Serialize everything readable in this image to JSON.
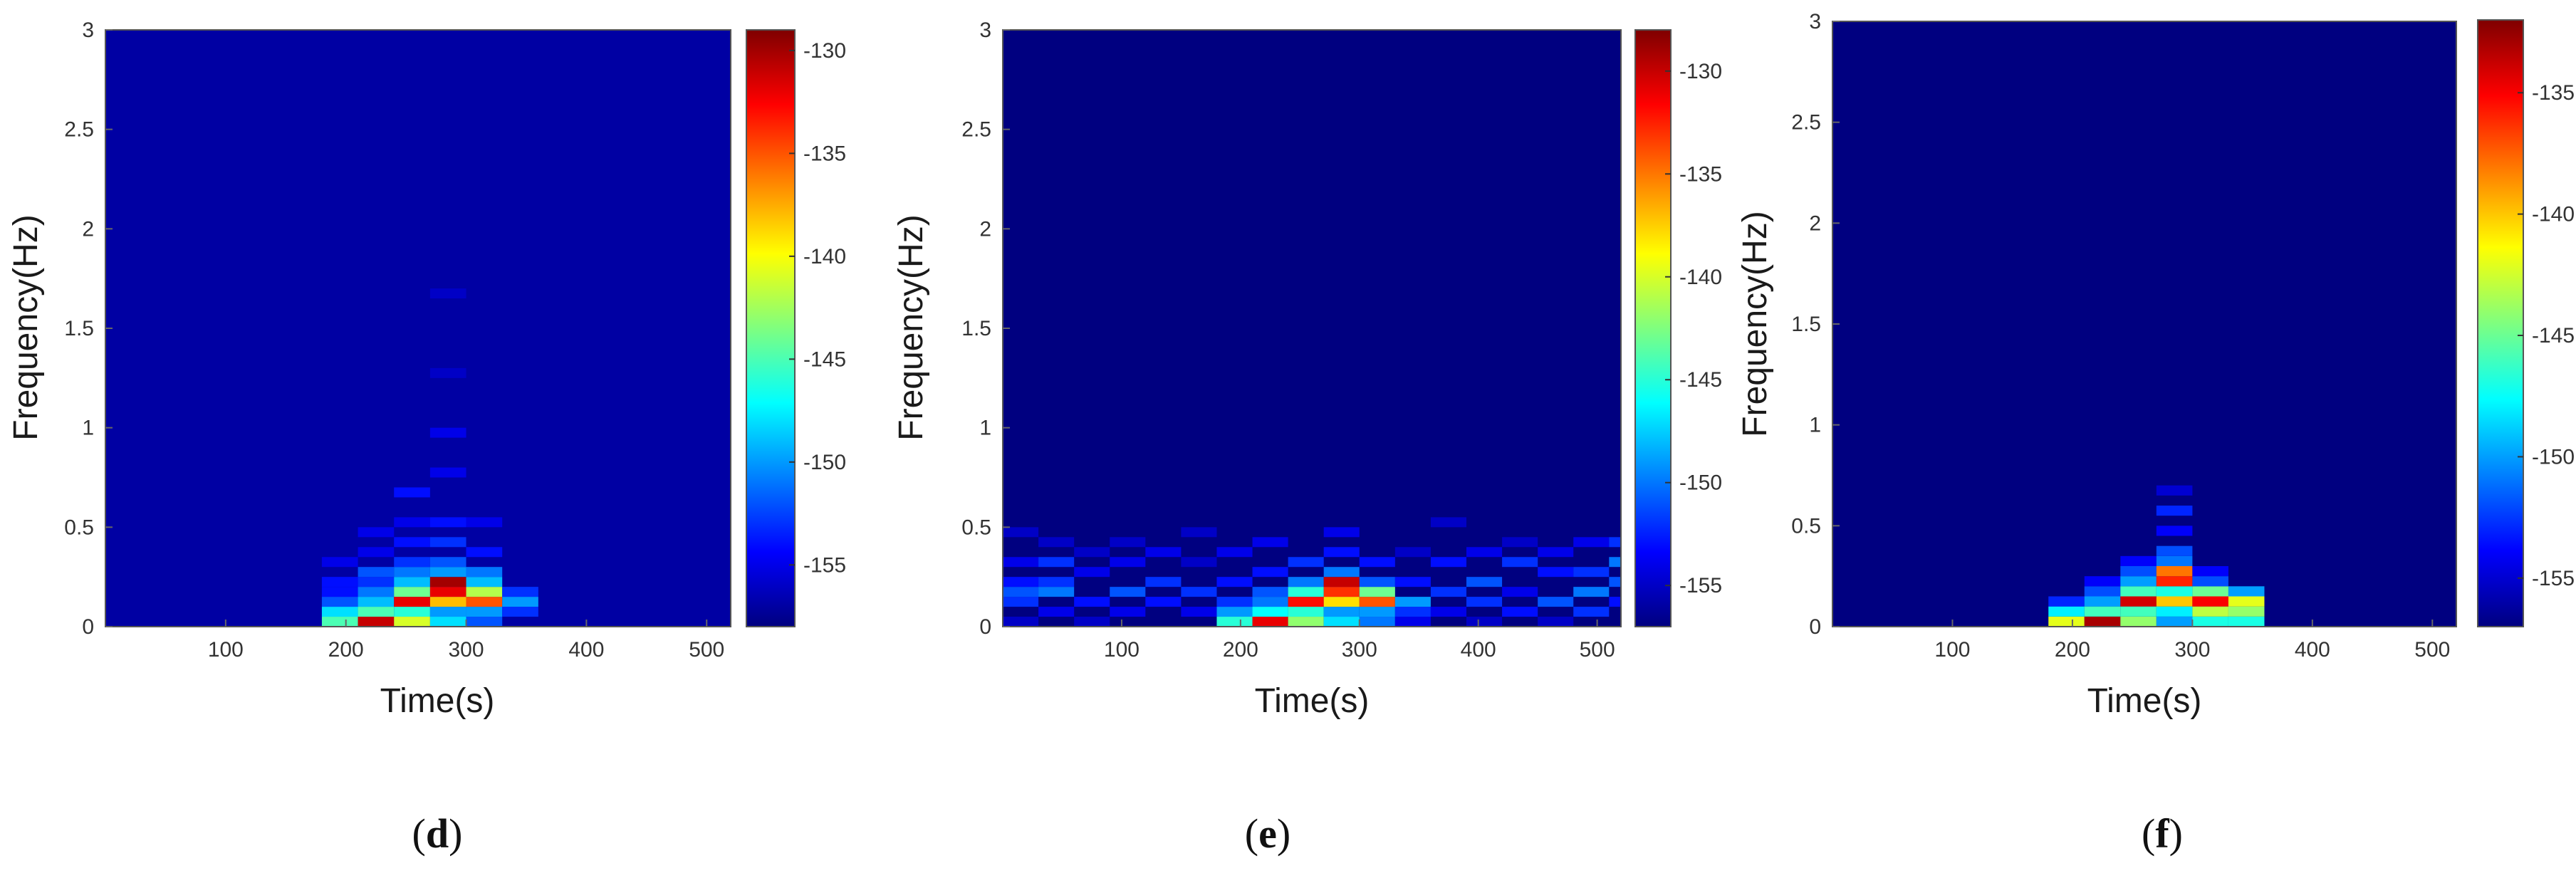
{
  "chart_data": [
    {
      "type": "heatmap",
      "panel_label": "d",
      "xlabel": "Time(s)",
      "ylabel": "Frequency(Hz)",
      "xlim": [
        0,
        520
      ],
      "ylim": [
        0,
        3
      ],
      "x_ticks": [
        100,
        200,
        300,
        400,
        500
      ],
      "y_ticks": [
        0,
        0.5,
        1,
        1.5,
        2,
        2.5,
        3
      ],
      "y_tick_labels": [
        "0",
        "0.5",
        "1",
        "1.5",
        "2",
        "2.5",
        "3"
      ],
      "colorbar": {
        "range": [
          -158,
          -129
        ],
        "ticks": [
          -130,
          -135,
          -140,
          -145,
          -150,
          -155
        ]
      },
      "cell_size": {
        "time_s": 30,
        "freq_hz": 0.05
      },
      "background_value": -157,
      "cells": [
        {
          "t": 180,
          "f": 0.0,
          "v": -145
        },
        {
          "t": 180,
          "f": 0.05,
          "v": -148
        },
        {
          "t": 180,
          "f": 0.1,
          "v": -152
        },
        {
          "t": 180,
          "f": 0.15,
          "v": -154
        },
        {
          "t": 180,
          "f": 0.2,
          "v": -154
        },
        {
          "t": 180,
          "f": 0.3,
          "v": -155
        },
        {
          "t": 210,
          "f": 0.0,
          "v": -131
        },
        {
          "t": 210,
          "f": 0.05,
          "v": -145
        },
        {
          "t": 210,
          "f": 0.1,
          "v": -149
        },
        {
          "t": 210,
          "f": 0.15,
          "v": -151
        },
        {
          "t": 210,
          "f": 0.2,
          "v": -153
        },
        {
          "t": 210,
          "f": 0.25,
          "v": -152
        },
        {
          "t": 210,
          "f": 0.35,
          "v": -155
        },
        {
          "t": 210,
          "f": 0.45,
          "v": -155
        },
        {
          "t": 240,
          "f": 0.0,
          "v": -141
        },
        {
          "t": 240,
          "f": 0.05,
          "v": -146
        },
        {
          "t": 240,
          "f": 0.1,
          "v": -132
        },
        {
          "t": 240,
          "f": 0.15,
          "v": -144
        },
        {
          "t": 240,
          "f": 0.2,
          "v": -149
        },
        {
          "t": 240,
          "f": 0.25,
          "v": -151
        },
        {
          "t": 240,
          "f": 0.3,
          "v": -153
        },
        {
          "t": 240,
          "f": 0.4,
          "v": -154
        },
        {
          "t": 240,
          "f": 0.5,
          "v": -155
        },
        {
          "t": 240,
          "f": 0.65,
          "v": -154
        },
        {
          "t": 270,
          "f": 0.0,
          "v": -148
        },
        {
          "t": 270,
          "f": 0.05,
          "v": -150
        },
        {
          "t": 270,
          "f": 0.1,
          "v": -138
        },
        {
          "t": 270,
          "f": 0.15,
          "v": -132
        },
        {
          "t": 270,
          "f": 0.2,
          "v": -130
        },
        {
          "t": 270,
          "f": 0.25,
          "v": -150
        },
        {
          "t": 270,
          "f": 0.3,
          "v": -152
        },
        {
          "t": 270,
          "f": 0.4,
          "v": -153
        },
        {
          "t": 270,
          "f": 0.5,
          "v": -154
        },
        {
          "t": 270,
          "f": 0.75,
          "v": -155
        },
        {
          "t": 270,
          "f": 0.95,
          "v": -155
        },
        {
          "t": 270,
          "f": 1.25,
          "v": -156
        },
        {
          "t": 270,
          "f": 1.65,
          "v": -156
        },
        {
          "t": 300,
          "f": 0.0,
          "v": -152
        },
        {
          "t": 300,
          "f": 0.05,
          "v": -150
        },
        {
          "t": 300,
          "f": 0.1,
          "v": -135
        },
        {
          "t": 300,
          "f": 0.15,
          "v": -142
        },
        {
          "t": 300,
          "f": 0.2,
          "v": -149
        },
        {
          "t": 300,
          "f": 0.25,
          "v": -151
        },
        {
          "t": 300,
          "f": 0.35,
          "v": -154
        },
        {
          "t": 300,
          "f": 0.5,
          "v": -155
        },
        {
          "t": 330,
          "f": 0.05,
          "v": -153
        },
        {
          "t": 330,
          "f": 0.1,
          "v": -150
        },
        {
          "t": 330,
          "f": 0.15,
          "v": -153
        }
      ]
    },
    {
      "type": "heatmap",
      "panel_label": "e",
      "xlabel": "Time(s)",
      "ylabel": "Frequency(Hz)",
      "xlim": [
        0,
        520
      ],
      "ylim": [
        0,
        3
      ],
      "x_ticks": [
        100,
        200,
        300,
        400,
        500
      ],
      "y_ticks": [
        0,
        0.5,
        1,
        1.5,
        2,
        2.5,
        3
      ],
      "y_tick_labels": [
        "0",
        "0.5",
        "1",
        "1.5",
        "2",
        "2.5",
        "3"
      ],
      "colorbar": {
        "range": [
          -157,
          -128
        ],
        "ticks": [
          -130,
          -135,
          -140,
          -145,
          -150,
          -155
        ],
        "tick_labels": [
          "-130",
          "-135",
          "-140",
          "-145",
          "-150",
          "-155"
        ]
      },
      "cell_size": {
        "time_s": 30,
        "freq_hz": 0.05
      },
      "background_value": -157,
      "cells": [
        {
          "t": 0,
          "f": 0.0,
          "v": -155
        },
        {
          "t": 0,
          "f": 0.1,
          "v": -152
        },
        {
          "t": 0,
          "f": 0.15,
          "v": -151
        },
        {
          "t": 0,
          "f": 0.2,
          "v": -153
        },
        {
          "t": 0,
          "f": 0.3,
          "v": -154
        },
        {
          "t": 0,
          "f": 0.45,
          "v": -155
        },
        {
          "t": 30,
          "f": 0.05,
          "v": -154
        },
        {
          "t": 30,
          "f": 0.15,
          "v": -150
        },
        {
          "t": 30,
          "f": 0.2,
          "v": -152
        },
        {
          "t": 30,
          "f": 0.3,
          "v": -152
        },
        {
          "t": 30,
          "f": 0.4,
          "v": -155
        },
        {
          "t": 60,
          "f": 0.0,
          "v": -155
        },
        {
          "t": 60,
          "f": 0.1,
          "v": -153
        },
        {
          "t": 60,
          "f": 0.25,
          "v": -154
        },
        {
          "t": 60,
          "f": 0.35,
          "v": -155
        },
        {
          "t": 90,
          "f": 0.05,
          "v": -154
        },
        {
          "t": 90,
          "f": 0.15,
          "v": -151
        },
        {
          "t": 90,
          "f": 0.3,
          "v": -154
        },
        {
          "t": 90,
          "f": 0.4,
          "v": -155
        },
        {
          "t": 120,
          "f": 0.1,
          "v": -153
        },
        {
          "t": 120,
          "f": 0.2,
          "v": -152
        },
        {
          "t": 120,
          "f": 0.35,
          "v": -154
        },
        {
          "t": 150,
          "f": 0.05,
          "v": -154
        },
        {
          "t": 150,
          "f": 0.15,
          "v": -152
        },
        {
          "t": 150,
          "f": 0.3,
          "v": -155
        },
        {
          "t": 150,
          "f": 0.45,
          "v": -155
        },
        {
          "t": 180,
          "f": 0.0,
          "v": -145
        },
        {
          "t": 180,
          "f": 0.05,
          "v": -149
        },
        {
          "t": 180,
          "f": 0.1,
          "v": -152
        },
        {
          "t": 180,
          "f": 0.2,
          "v": -153
        },
        {
          "t": 180,
          "f": 0.35,
          "v": -154
        },
        {
          "t": 210,
          "f": 0.0,
          "v": -131
        },
        {
          "t": 210,
          "f": 0.05,
          "v": -146
        },
        {
          "t": 210,
          "f": 0.1,
          "v": -150
        },
        {
          "t": 210,
          "f": 0.15,
          "v": -151
        },
        {
          "t": 210,
          "f": 0.25,
          "v": -153
        },
        {
          "t": 210,
          "f": 0.4,
          "v": -154
        },
        {
          "t": 240,
          "f": 0.0,
          "v": -142
        },
        {
          "t": 240,
          "f": 0.05,
          "v": -145
        },
        {
          "t": 240,
          "f": 0.1,
          "v": -132
        },
        {
          "t": 240,
          "f": 0.15,
          "v": -145
        },
        {
          "t": 240,
          "f": 0.2,
          "v": -150
        },
        {
          "t": 240,
          "f": 0.3,
          "v": -152
        },
        {
          "t": 270,
          "f": 0.0,
          "v": -147
        },
        {
          "t": 270,
          "f": 0.05,
          "v": -149
        },
        {
          "t": 270,
          "f": 0.1,
          "v": -138
        },
        {
          "t": 270,
          "f": 0.15,
          "v": -133
        },
        {
          "t": 270,
          "f": 0.2,
          "v": -130
        },
        {
          "t": 270,
          "f": 0.25,
          "v": -150
        },
        {
          "t": 270,
          "f": 0.35,
          "v": -153
        },
        {
          "t": 270,
          "f": 0.45,
          "v": -154
        },
        {
          "t": 300,
          "f": 0.0,
          "v": -150
        },
        {
          "t": 300,
          "f": 0.05,
          "v": -149
        },
        {
          "t": 300,
          "f": 0.1,
          "v": -134
        },
        {
          "t": 300,
          "f": 0.15,
          "v": -143
        },
        {
          "t": 300,
          "f": 0.2,
          "v": -151
        },
        {
          "t": 300,
          "f": 0.3,
          "v": -153
        },
        {
          "t": 330,
          "f": 0.0,
          "v": -154
        },
        {
          "t": 330,
          "f": 0.05,
          "v": -152
        },
        {
          "t": 330,
          "f": 0.1,
          "v": -149
        },
        {
          "t": 330,
          "f": 0.2,
          "v": -153
        },
        {
          "t": 330,
          "f": 0.35,
          "v": -155
        },
        {
          "t": 360,
          "f": 0.05,
          "v": -154
        },
        {
          "t": 360,
          "f": 0.15,
          "v": -152
        },
        {
          "t": 360,
          "f": 0.3,
          "v": -153
        },
        {
          "t": 360,
          "f": 0.5,
          "v": -155
        },
        {
          "t": 390,
          "f": 0.0,
          "v": -155
        },
        {
          "t": 390,
          "f": 0.1,
          "v": -152
        },
        {
          "t": 390,
          "f": 0.2,
          "v": -151
        },
        {
          "t": 390,
          "f": 0.35,
          "v": -154
        },
        {
          "t": 420,
          "f": 0.05,
          "v": -153
        },
        {
          "t": 420,
          "f": 0.15,
          "v": -154
        },
        {
          "t": 420,
          "f": 0.3,
          "v": -152
        },
        {
          "t": 420,
          "f": 0.4,
          "v": -155
        },
        {
          "t": 450,
          "f": 0.0,
          "v": -155
        },
        {
          "t": 450,
          "f": 0.1,
          "v": -151
        },
        {
          "t": 450,
          "f": 0.25,
          "v": -153
        },
        {
          "t": 450,
          "f": 0.35,
          "v": -154
        },
        {
          "t": 480,
          "f": 0.05,
          "v": -152
        },
        {
          "t": 480,
          "f": 0.15,
          "v": -150
        },
        {
          "t": 480,
          "f": 0.25,
          "v": -152
        },
        {
          "t": 480,
          "f": 0.4,
          "v": -154
        },
        {
          "t": 510,
          "f": 0.1,
          "v": -153
        },
        {
          "t": 510,
          "f": 0.2,
          "v": -151
        },
        {
          "t": 510,
          "f": 0.3,
          "v": -150
        },
        {
          "t": 510,
          "f": 0.4,
          "v": -152
        }
      ]
    },
    {
      "type": "heatmap",
      "panel_label": "f",
      "xlabel": "Time(s)",
      "ylabel": "Frequency(Hz)",
      "xlim": [
        0,
        520
      ],
      "ylim": [
        0,
        3
      ],
      "x_ticks": [
        100,
        200,
        300,
        400,
        500
      ],
      "y_ticks": [
        0,
        0.5,
        1,
        1.5,
        2,
        2.5,
        3
      ],
      "y_tick_labels": [
        "0",
        "0.5",
        "1",
        "1.5",
        "2",
        "2.5",
        "3"
      ],
      "colorbar": {
        "range": [
          -157,
          -132
        ],
        "ticks": [
          -135,
          -140,
          -145,
          -150,
          -155
        ]
      },
      "cell_size": {
        "time_s": 30,
        "freq_hz": 0.05
      },
      "background_value": -157,
      "cells": [
        {
          "t": 180,
          "f": 0.0,
          "v": -142
        },
        {
          "t": 180,
          "f": 0.05,
          "v": -148
        },
        {
          "t": 180,
          "f": 0.1,
          "v": -153
        },
        {
          "t": 210,
          "f": 0.0,
          "v": -133
        },
        {
          "t": 210,
          "f": 0.05,
          "v": -146
        },
        {
          "t": 210,
          "f": 0.1,
          "v": -150
        },
        {
          "t": 210,
          "f": 0.15,
          "v": -152
        },
        {
          "t": 210,
          "f": 0.2,
          "v": -154
        },
        {
          "t": 240,
          "f": 0.0,
          "v": -144
        },
        {
          "t": 240,
          "f": 0.05,
          "v": -146
        },
        {
          "t": 240,
          "f": 0.1,
          "v": -134
        },
        {
          "t": 240,
          "f": 0.15,
          "v": -146
        },
        {
          "t": 240,
          "f": 0.2,
          "v": -150
        },
        {
          "t": 240,
          "f": 0.25,
          "v": -152
        },
        {
          "t": 240,
          "f": 0.3,
          "v": -154
        },
        {
          "t": 270,
          "f": 0.0,
          "v": -150
        },
        {
          "t": 270,
          "f": 0.05,
          "v": -148
        },
        {
          "t": 270,
          "f": 0.1,
          "v": -140
        },
        {
          "t": 270,
          "f": 0.15,
          "v": -147
        },
        {
          "t": 270,
          "f": 0.2,
          "v": -136
        },
        {
          "t": 270,
          "f": 0.25,
          "v": -138
        },
        {
          "t": 270,
          "f": 0.3,
          "v": -151
        },
        {
          "t": 270,
          "f": 0.35,
          "v": -152
        },
        {
          "t": 270,
          "f": 0.45,
          "v": -154
        },
        {
          "t": 270,
          "f": 0.55,
          "v": -153
        },
        {
          "t": 270,
          "f": 0.65,
          "v": -155
        },
        {
          "t": 300,
          "f": 0.0,
          "v": -147
        },
        {
          "t": 300,
          "f": 0.05,
          "v": -143
        },
        {
          "t": 300,
          "f": 0.1,
          "v": -135
        },
        {
          "t": 300,
          "f": 0.15,
          "v": -145
        },
        {
          "t": 300,
          "f": 0.2,
          "v": -152
        },
        {
          "t": 300,
          "f": 0.25,
          "v": -154
        },
        {
          "t": 330,
          "f": 0.0,
          "v": -147
        },
        {
          "t": 330,
          "f": 0.05,
          "v": -144
        },
        {
          "t": 330,
          "f": 0.1,
          "v": -142
        },
        {
          "t": 330,
          "f": 0.15,
          "v": -150
        }
      ]
    }
  ]
}
